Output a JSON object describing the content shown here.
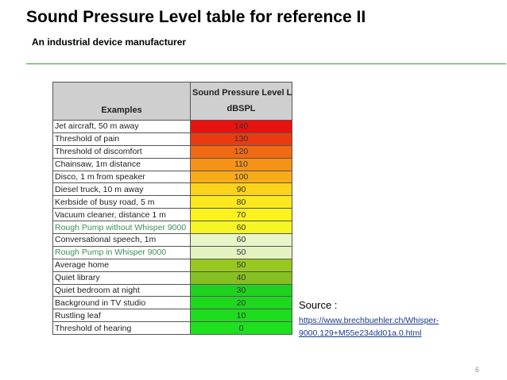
{
  "slide": {
    "title": "Sound Pressure Level table for reference II",
    "subtitle": "An industrial device manufacturer",
    "page_number": "6"
  },
  "table": {
    "header_examples": "Examples",
    "header_level": "Sound Pressure Level L",
    "header_level_sub": "p",
    "header_unit": "dBSPL",
    "rows": [
      {
        "example": "Jet aircraft, 50 m away",
        "level": "140",
        "color": "#e8120e",
        "highlight": false
      },
      {
        "example": "Threshold of pain",
        "level": "130",
        "color": "#ec3a10",
        "highlight": false
      },
      {
        "example": "Threshold of discomfort",
        "level": "120",
        "color": "#f06a14",
        "highlight": false
      },
      {
        "example": "Chainsaw, 1m distance",
        "level": "110",
        "color": "#f59318",
        "highlight": false
      },
      {
        "example": "Disco, 1 m from speaker",
        "level": "100",
        "color": "#f8ac1a",
        "highlight": false
      },
      {
        "example": "Diesel truck, 10 m away",
        "level": "90",
        "color": "#fbd21c",
        "highlight": false
      },
      {
        "example": "Kerbside of busy road, 5 m",
        "level": "80",
        "color": "#fbe81e",
        "highlight": false
      },
      {
        "example": "Vacuum cleaner, distance 1 m",
        "level": "70",
        "color": "#fbf21e",
        "highlight": false
      },
      {
        "example": "Rough Pump without Whisper 9000",
        "level": "60",
        "color": "#f6f622",
        "highlight": true
      },
      {
        "example": "Conversational speech, 1m",
        "level": "60",
        "color": "#e8f5c8",
        "highlight": false
      },
      {
        "example": "Rough Pump in Whisper 9000",
        "level": "50",
        "color": "#e4f2c2",
        "highlight": true
      },
      {
        "example": "Average home",
        "level": "50",
        "color": "#98c820",
        "highlight": false
      },
      {
        "example": "Quiet library",
        "level": "40",
        "color": "#86bf22",
        "highlight": false
      },
      {
        "example": "Quiet bedroom at night",
        "level": "30",
        "color": "#1fd21f",
        "highlight": false
      },
      {
        "example": "Background in TV studio",
        "level": "20",
        "color": "#1ed81e",
        "highlight": false
      },
      {
        "example": "Rustling leaf",
        "level": "10",
        "color": "#1edd1e",
        "highlight": false
      },
      {
        "example": "Threshold of hearing",
        "level": "0",
        "color": "#1ee01e",
        "highlight": false
      }
    ]
  },
  "source": {
    "label": "Source :",
    "url_line1": "https://www.brechbuehler.ch/Whisper-",
    "url_line2": "9000.129+M55e234dd01a.0.html"
  }
}
